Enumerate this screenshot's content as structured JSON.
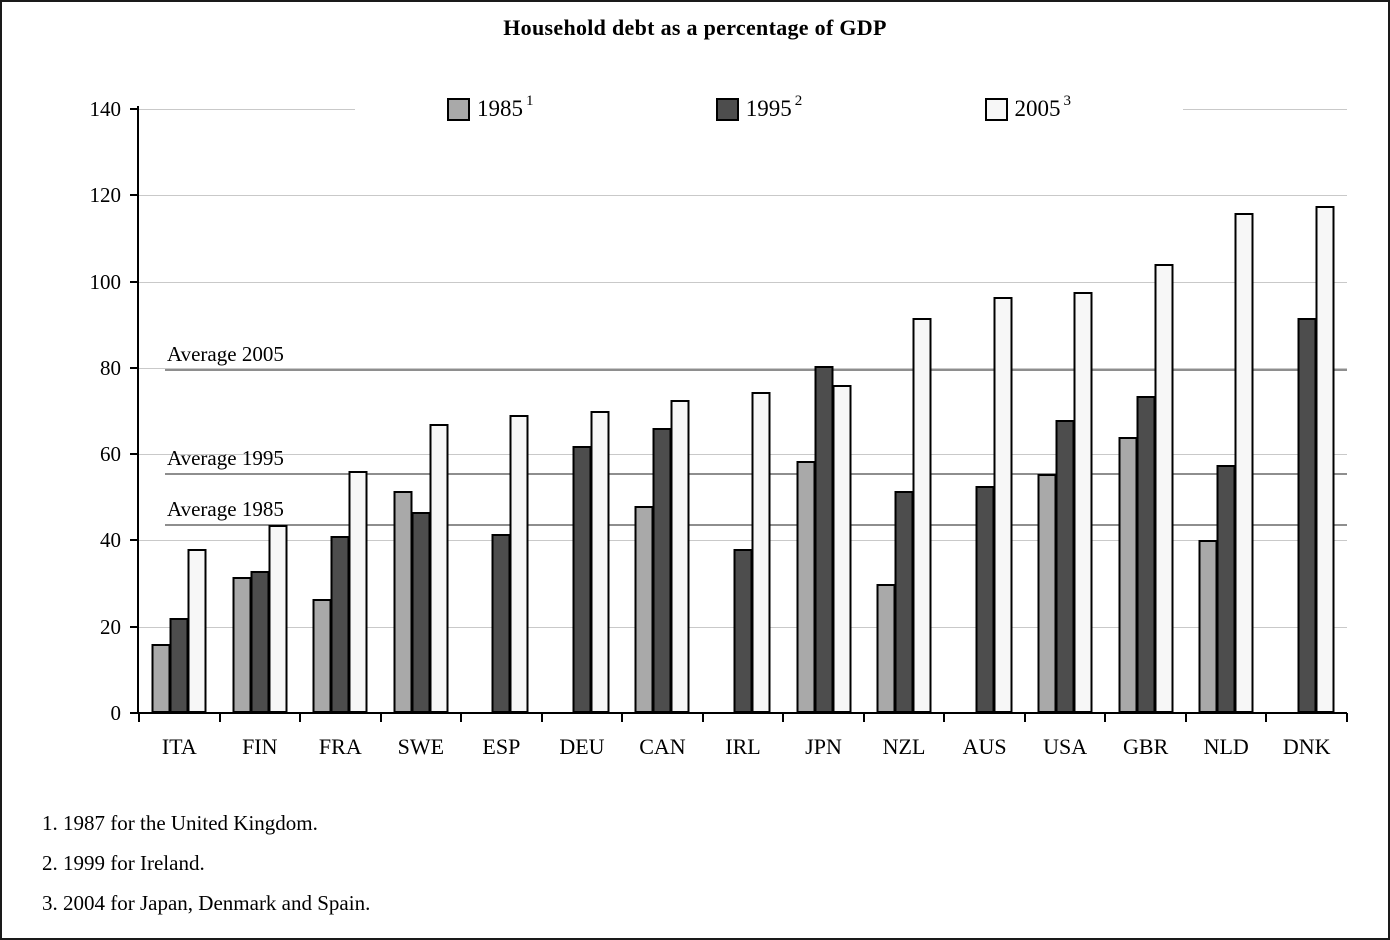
{
  "title": "Household debt as a percentage of GDP",
  "legend": {
    "items": [
      {
        "label": "1985",
        "sup": "1",
        "color": "#a9a9a9"
      },
      {
        "label": "1995",
        "sup": "2",
        "color": "#4d4d4d"
      },
      {
        "label": "2005",
        "sup": "3",
        "color": "#f7f7f7"
      }
    ]
  },
  "footnotes": [
    "1. 1987 for the United Kingdom.",
    "2. 1999 for Ireland.",
    "3. 2004 for Japan, Denmark and Spain."
  ],
  "chart_data": {
    "type": "bar",
    "title": "Household debt as a percentage of GDP",
    "categories": [
      "ITA",
      "FIN",
      "FRA",
      "SWE",
      "ESP",
      "DEU",
      "CAN",
      "IRL",
      "JPN",
      "NZL",
      "AUS",
      "USA",
      "GBR",
      "NLD",
      "DNK"
    ],
    "series": [
      {
        "name": "1985",
        "footnote": "1",
        "color": "#a9a9a9",
        "values": [
          16,
          31.5,
          26.5,
          51.5,
          null,
          null,
          48,
          null,
          58.5,
          30,
          null,
          55.5,
          64,
          40,
          null
        ]
      },
      {
        "name": "1995",
        "footnote": "2",
        "color": "#4d4d4d",
        "values": [
          22,
          33,
          41,
          46.5,
          41.5,
          62,
          66,
          38,
          80.5,
          51.5,
          52.5,
          68,
          73.5,
          57.5,
          91.5
        ]
      },
      {
        "name": "2005",
        "footnote": "3",
        "color": "#f7f7f7",
        "values": [
          38,
          43.5,
          56,
          67,
          69,
          70,
          72.5,
          74.5,
          76,
          91.5,
          96.5,
          97.5,
          104,
          116,
          117.5
        ]
      }
    ],
    "reference_lines": [
      {
        "label": "Average 2005",
        "value": 79.5
      },
      {
        "label": "Average 1995",
        "value": 55.5
      },
      {
        "label": "Average 1985",
        "value": 43.5
      }
    ],
    "xlabel": "",
    "ylabel": "",
    "ylim": [
      0,
      140
    ],
    "ytick_step": 20,
    "grid": true,
    "legend_position": "top"
  }
}
